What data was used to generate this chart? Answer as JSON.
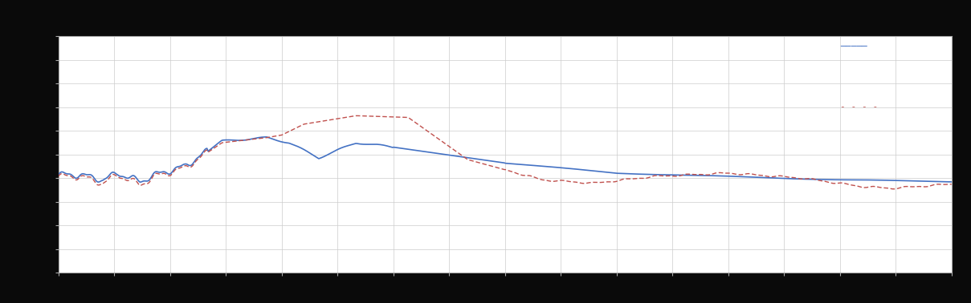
{
  "background_color": "#0a0a0a",
  "plot_bg_color": "#ffffff",
  "grid_color": "#cccccc",
  "spine_color": "#aaaaaa",
  "line1_color": "#4472C4",
  "line2_color": "#C0504D",
  "figsize": [
    12.09,
    3.78
  ],
  "dpi": 100,
  "xlim": [
    0,
    120
  ],
  "ylim": [
    0,
    14
  ],
  "xtick_step": 7.5,
  "ytick_step": 2
}
